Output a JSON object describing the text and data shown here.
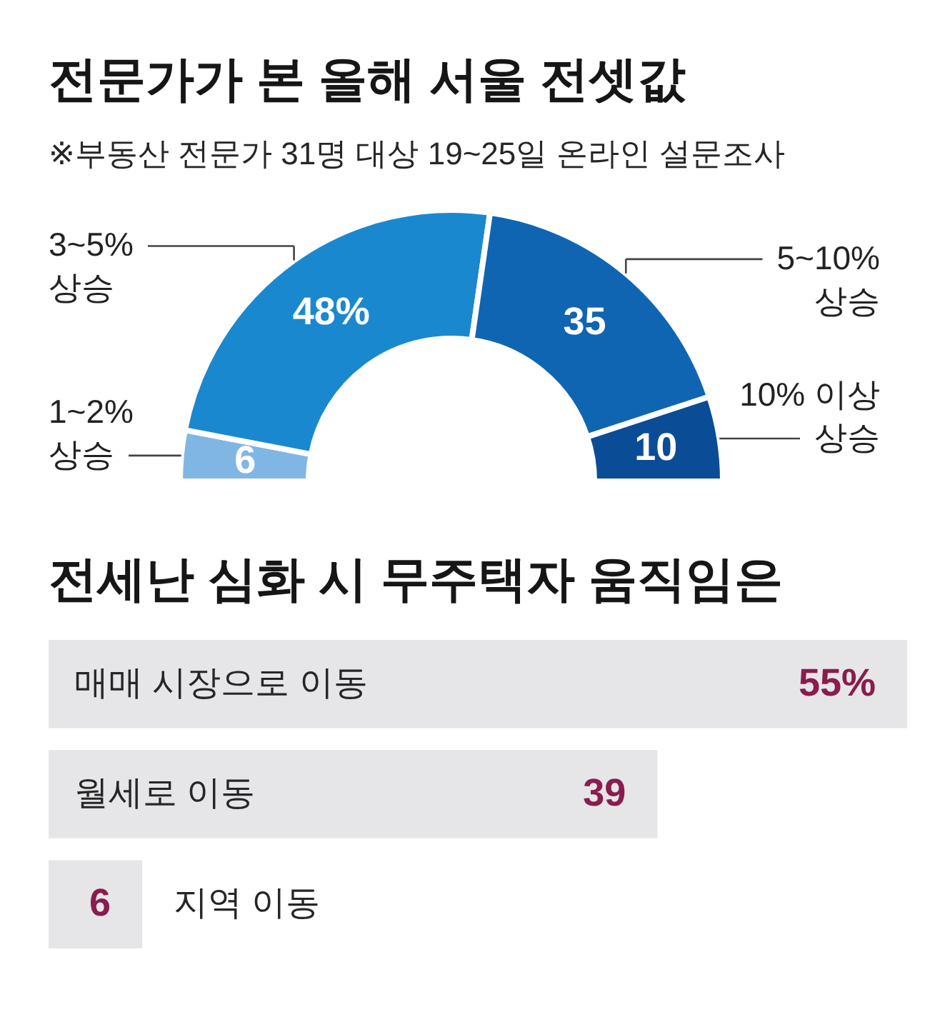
{
  "chart_data": [
    {
      "type": "donut",
      "title": "전문가가 본 올해 서울 전셋값",
      "subtitle": "※부동산 전문가 31명 대상 19~25일 온라인 설문조사",
      "categories": [
        "1~2% 상승",
        "3~5% 상승",
        "5~10% 상승",
        "10% 이상 상승"
      ],
      "values": [
        6,
        48,
        35,
        10
      ],
      "colors": [
        "#80b6e4",
        "#1a88cf",
        "#0f65b1",
        "#0a4c96"
      ],
      "value_labels": [
        "6",
        "48%",
        "35",
        "10"
      ]
    },
    {
      "type": "bar",
      "orientation": "horizontal",
      "title": "전세난 심화 시 무주택자 움직임은",
      "categories": [
        "매매 시장으로 이동",
        "월세로 이동",
        "지역 이동"
      ],
      "values": [
        55,
        39,
        6
      ],
      "color": "#e6e6e8",
      "value_labels": [
        "55%",
        "39",
        "6"
      ]
    }
  ]
}
